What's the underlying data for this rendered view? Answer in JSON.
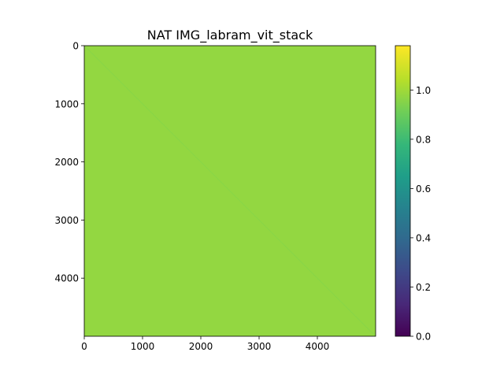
{
  "chart_data": {
    "type": "heatmap",
    "title": "NAT IMG_labram_vit_stack",
    "xlabel": "",
    "ylabel": "",
    "xlim": [
      0,
      5000
    ],
    "ylim": [
      5000,
      0
    ],
    "x_ticks": [
      0,
      1000,
      2000,
      3000,
      4000
    ],
    "y_ticks": [
      0,
      1000,
      2000,
      3000,
      4000
    ],
    "x_tick_labels": [
      "0",
      "1000",
      "2000",
      "3000",
      "4000"
    ],
    "y_tick_labels": [
      "0",
      "1000",
      "2000",
      "3000",
      "4000"
    ],
    "matrix_size": 5000,
    "fill_value": 1.0,
    "diagonal_value": 0.97,
    "colormap": "viridis",
    "colorbar": {
      "range": [
        0.0,
        1.18
      ],
      "ticks": [
        0.0,
        0.2,
        0.4,
        0.6,
        0.8,
        1.0
      ],
      "tick_labels": [
        "0.0",
        "0.2",
        "0.4",
        "0.6",
        "0.8",
        "1.0"
      ]
    },
    "grid": false,
    "colors": {
      "fill": "#93d741",
      "diagonal": "#86d549"
    }
  }
}
